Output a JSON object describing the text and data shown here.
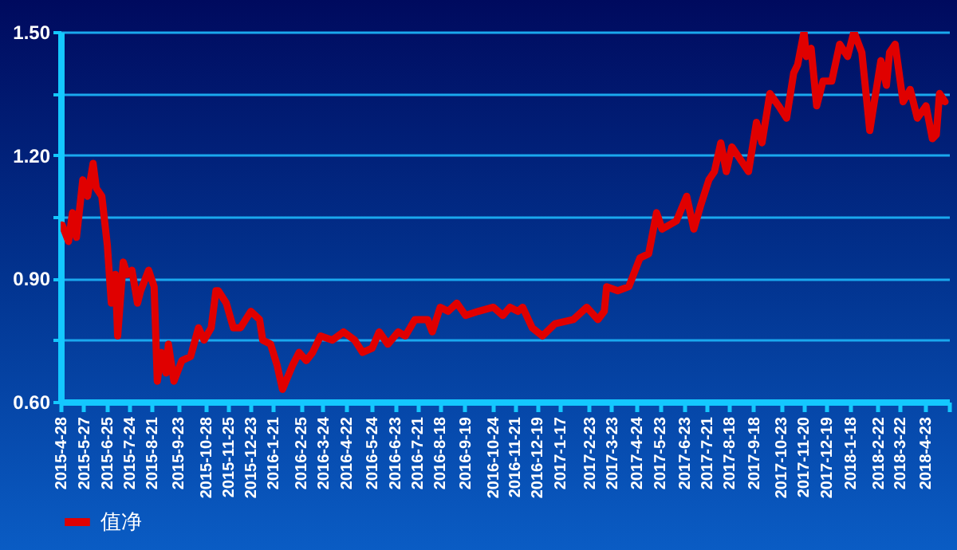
{
  "chart_data": {
    "type": "line",
    "x": [
      "2015-04-30",
      "2015-05-08",
      "2015-05-13",
      "2015-05-18",
      "2015-05-26",
      "2015-06-01",
      "2015-06-08",
      "2015-06-12",
      "2015-06-19",
      "2015-06-26",
      "2015-07-01",
      "2015-07-06",
      "2015-07-09",
      "2015-07-16",
      "2015-07-21",
      "2015-07-27",
      "2015-08-03",
      "2015-08-07",
      "2015-08-17",
      "2015-08-24",
      "2015-08-28",
      "2015-09-02",
      "2015-09-08",
      "2015-09-11",
      "2015-09-18",
      "2015-09-28",
      "2015-10-09",
      "2015-10-19",
      "2015-10-26",
      "2015-11-04",
      "2015-11-10",
      "2015-11-13",
      "2015-11-23",
      "2015-12-02",
      "2015-12-11",
      "2015-12-24",
      "2016-01-04",
      "2016-01-08",
      "2016-01-18",
      "2016-01-26",
      "2016-02-02",
      "2016-02-15",
      "2016-02-23",
      "2016-03-03",
      "2016-03-11",
      "2016-03-21",
      "2016-04-05",
      "2016-04-19",
      "2016-05-03",
      "2016-05-13",
      "2016-05-25",
      "2016-06-03",
      "2016-06-14",
      "2016-06-27",
      "2016-07-06",
      "2016-07-18",
      "2016-08-03",
      "2016-08-09",
      "2016-08-19",
      "2016-08-29",
      "2016-09-09",
      "2016-09-20",
      "2016-10-06",
      "2016-10-25",
      "2016-11-06",
      "2016-11-15",
      "2016-11-25",
      "2016-12-01",
      "2016-12-13",
      "2016-12-26",
      "2017-01-11",
      "2017-02-03",
      "2017-02-20",
      "2017-03-06",
      "2017-03-14",
      "2017-03-17",
      "2017-03-31",
      "2017-04-14",
      "2017-04-28",
      "2017-05-09",
      "2017-05-19",
      "2017-05-26",
      "2017-06-13",
      "2017-06-26",
      "2017-07-05",
      "2017-07-14",
      "2017-07-24",
      "2017-07-31",
      "2017-08-08",
      "2017-08-15",
      "2017-08-22",
      "2017-09-12",
      "2017-09-22",
      "2017-09-29",
      "2017-10-09",
      "2017-10-20",
      "2017-10-30",
      "2017-11-08",
      "2017-11-13",
      "2017-11-21",
      "2017-11-24",
      "2017-11-30",
      "2017-12-07",
      "2017-12-15",
      "2017-12-26",
      "2018-01-05",
      "2018-01-15",
      "2018-01-23",
      "2018-02-02",
      "2018-02-12",
      "2018-02-26",
      "2018-03-05",
      "2018-03-09",
      "2018-03-16",
      "2018-03-26",
      "2018-04-04",
      "2018-04-13",
      "2018-04-24",
      "2018-05-02",
      "2018-05-07",
      "2018-05-11",
      "2018-05-18"
    ],
    "series": [
      {
        "name": "值净",
        "color": "#e00000",
        "values": [
          1.03,
          0.99,
          1.06,
          1.0,
          1.14,
          1.1,
          1.18,
          1.12,
          1.1,
          0.98,
          0.84,
          0.91,
          0.76,
          0.94,
          0.91,
          0.92,
          0.84,
          0.87,
          0.92,
          0.88,
          0.65,
          0.72,
          0.67,
          0.74,
          0.65,
          0.7,
          0.71,
          0.78,
          0.75,
          0.78,
          0.87,
          0.87,
          0.84,
          0.78,
          0.78,
          0.82,
          0.8,
          0.75,
          0.74,
          0.69,
          0.63,
          0.69,
          0.72,
          0.7,
          0.72,
          0.76,
          0.75,
          0.77,
          0.75,
          0.72,
          0.73,
          0.77,
          0.74,
          0.77,
          0.76,
          0.8,
          0.8,
          0.77,
          0.83,
          0.82,
          0.84,
          0.81,
          0.82,
          0.83,
          0.81,
          0.83,
          0.82,
          0.83,
          0.78,
          0.76,
          0.79,
          0.8,
          0.83,
          0.8,
          0.82,
          0.88,
          0.87,
          0.88,
          0.95,
          0.96,
          1.06,
          1.02,
          1.04,
          1.1,
          1.02,
          1.08,
          1.14,
          1.16,
          1.23,
          1.16,
          1.22,
          1.16,
          1.28,
          1.23,
          1.35,
          1.32,
          1.29,
          1.4,
          1.42,
          1.5,
          1.44,
          1.46,
          1.32,
          1.38,
          1.38,
          1.47,
          1.44,
          1.5,
          1.45,
          1.26,
          1.43,
          1.37,
          1.45,
          1.47,
          1.33,
          1.36,
          1.29,
          1.32,
          1.24,
          1.25,
          1.35,
          1.33
        ]
      }
    ],
    "xlim": [
      "2015-04-28",
      "2018-05-23"
    ],
    "xticks": [
      {
        "value": "2015-04-28",
        "label": "2015-4-28"
      },
      {
        "value": "2015-05-27",
        "label": "2015-5-27"
      },
      {
        "value": "2015-06-25",
        "label": "2015-6-25"
      },
      {
        "value": "2015-07-24",
        "label": "2015-7-24"
      },
      {
        "value": "2015-08-21",
        "label": "2015-8-21"
      },
      {
        "value": "2015-09-23",
        "label": "2015-9-23"
      },
      {
        "value": "2015-10-28",
        "label": "2015-10-28"
      },
      {
        "value": "2015-11-25",
        "label": "2015-11-25"
      },
      {
        "value": "2015-12-23",
        "label": "2015-12-23"
      },
      {
        "value": "2016-01-21",
        "label": "2016-1-21"
      },
      {
        "value": "2016-02-25",
        "label": "2016-2-25"
      },
      {
        "value": "2016-03-24",
        "label": "2016-3-24"
      },
      {
        "value": "2016-04-22",
        "label": "2016-4-22"
      },
      {
        "value": "2016-05-24",
        "label": "2016-5-24"
      },
      {
        "value": "2016-06-23",
        "label": "2016-6-23"
      },
      {
        "value": "2016-07-21",
        "label": "2016-7-21"
      },
      {
        "value": "2016-08-18",
        "label": "2016-8-18"
      },
      {
        "value": "2016-09-19",
        "label": "2016-9-19"
      },
      {
        "value": "2016-10-24",
        "label": "2016-10-24"
      },
      {
        "value": "2016-11-21",
        "label": "2016-11-21"
      },
      {
        "value": "2016-12-19",
        "label": "2016-12-19"
      },
      {
        "value": "2017-01-17",
        "label": "2017-1-17"
      },
      {
        "value": "2017-02-23",
        "label": "2017-2-23"
      },
      {
        "value": "2017-03-23",
        "label": "2017-3-23"
      },
      {
        "value": "2017-04-24",
        "label": "2017-4-24"
      },
      {
        "value": "2017-05-23",
        "label": "2017-5-23"
      },
      {
        "value": "2017-06-23",
        "label": "2017-6-23"
      },
      {
        "value": "2017-07-21",
        "label": "2017-7-21"
      },
      {
        "value": "2017-08-18",
        "label": "2017-8-18"
      },
      {
        "value": "2017-09-18",
        "label": "2017-9-18"
      },
      {
        "value": "2017-10-23",
        "label": "2017-10-23"
      },
      {
        "value": "2017-11-20",
        "label": "2017-11-20"
      },
      {
        "value": "2017-12-19",
        "label": "2017-12-19"
      },
      {
        "value": "2018-01-18",
        "label": "2018-1-18"
      },
      {
        "value": "2018-02-22",
        "label": "2018-2-22"
      },
      {
        "value": "2018-03-22",
        "label": "2018-3-22"
      },
      {
        "value": "2018-04-23",
        "label": "2018-4-23"
      },
      {
        "value": "2018-05-23",
        "label": null
      }
    ],
    "ylim": [
      0.6,
      1.5
    ],
    "yticks": [
      {
        "value": 0.6,
        "label": "0.60"
      },
      {
        "value": 0.75,
        "label": null
      },
      {
        "value": 0.9,
        "label": "0.90"
      },
      {
        "value": 1.05,
        "label": null
      },
      {
        "value": 1.2,
        "label": "1.20"
      },
      {
        "value": 1.35,
        "label": null
      },
      {
        "value": 1.5,
        "label": "1.50"
      }
    ],
    "grid": "y",
    "legend": "bottom left"
  }
}
